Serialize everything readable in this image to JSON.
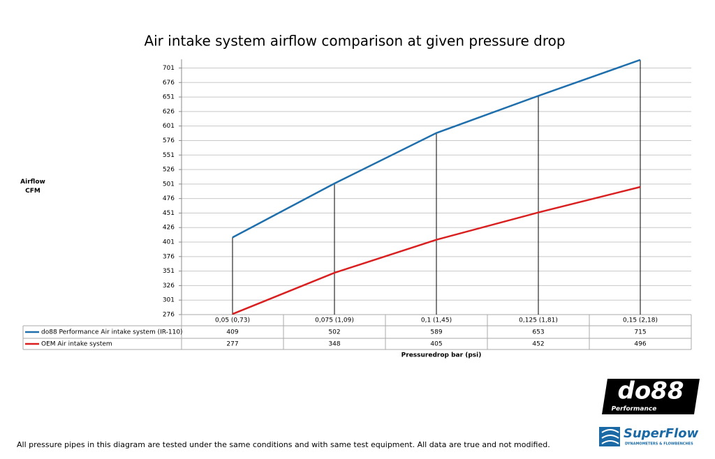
{
  "chart_data": {
    "type": "line",
    "title": "Air intake system airflow comparison at given pressure drop",
    "ylabel": "Airflow CFM",
    "xlabel": "Pressuredrop bar (psi)",
    "categories": [
      "0,05 (0,73)",
      "0,075 (1,09)",
      "0,1 (1,45)",
      "0,125 (1,81)",
      "0,15 (2,18)"
    ],
    "series": [
      {
        "name": "do88 Performance Air intake system (IR-110)",
        "color": "#1f6fad",
        "values": [
          409,
          502,
          589,
          653,
          715
        ]
      },
      {
        "name": "OEM Air intake system",
        "color": "#d91f1f",
        "values": [
          277,
          348,
          405,
          452,
          496
        ]
      }
    ],
    "ylim": [
      276,
      716
    ],
    "yticks": [
      276,
      301,
      326,
      351,
      376,
      401,
      426,
      451,
      476,
      501,
      526,
      551,
      576,
      601,
      626,
      651,
      676,
      701
    ],
    "grid": true
  },
  "footnote": "All pressure pipes in this diagram are tested under the same conditions and with same test equipment. All data are true and not modified.",
  "logos": {
    "brand": "do88",
    "brand_sub": "Performance",
    "partner": "SuperFlow",
    "partner_sub": "DYNAMOMETERS & FLOWBENCHES"
  }
}
